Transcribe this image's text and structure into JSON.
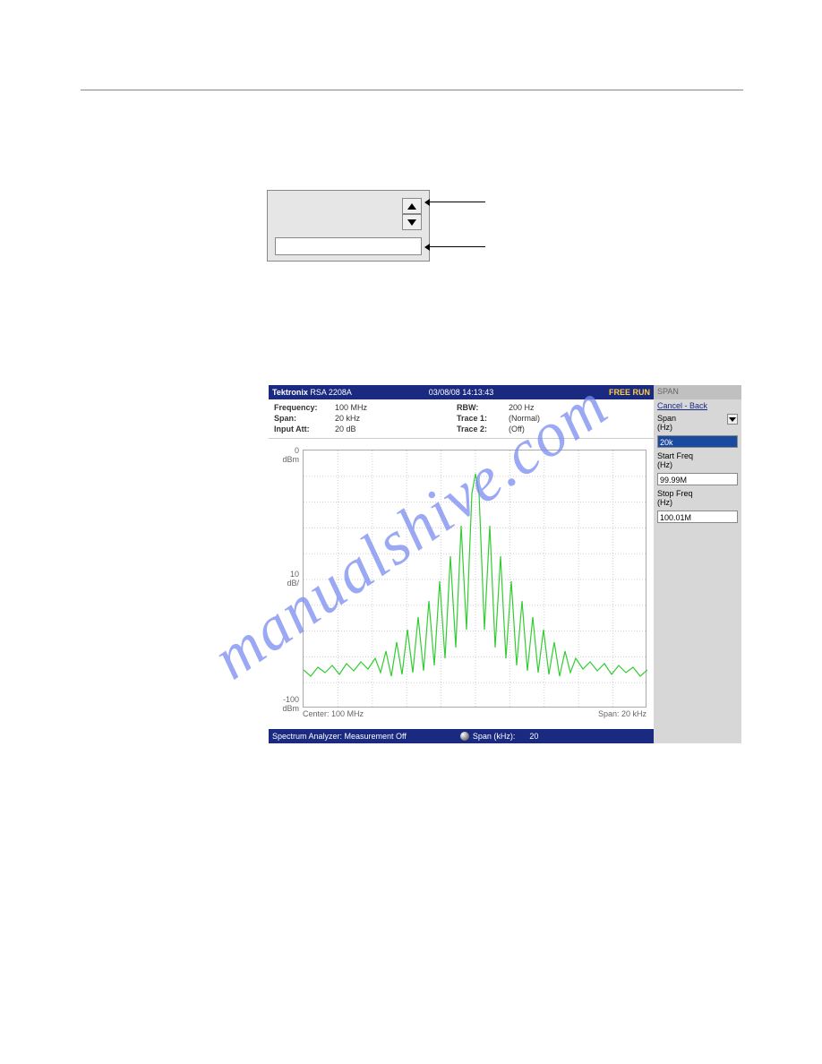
{
  "title_bar": {
    "brand": "Tektronix",
    "model": "RSA 2208A",
    "date": "03/08/08 14:13:43",
    "run": "FREE RUN"
  },
  "info": {
    "freq_label": "Frequency:",
    "freq_val": "100 MHz",
    "span_label": "Span:",
    "span_val": "20 kHz",
    "att_label": "Input Att:",
    "att_val": "20 dB",
    "rbw_label": "RBW:",
    "rbw_val": "200 Hz",
    "t1_label": "Trace 1:",
    "t1_val": "(Normal)",
    "t2_label": "Trace 2:",
    "t2_val": "(Off)"
  },
  "y_axis": {
    "top_val": "0",
    "top_unit": "dBm",
    "mid_val": "10",
    "mid_unit": "dB/",
    "bot_val": "-100",
    "bot_unit": "dBm"
  },
  "x_axis": {
    "center": "Center: 100 MHz",
    "span": "Span: 20 kHz"
  },
  "chart": {
    "type": "line",
    "color": "#33cc33",
    "background": "#ffffff",
    "grid_color": "#d0d0d0",
    "xlim": [
      0,
      384
    ],
    "ylim": [
      0,
      288
    ],
    "h_gridlines": 10,
    "v_gridlines": 10,
    "series": [
      [
        0,
        245
      ],
      [
        8,
        252
      ],
      [
        16,
        242
      ],
      [
        24,
        248
      ],
      [
        32,
        240
      ],
      [
        40,
        250
      ],
      [
        48,
        238
      ],
      [
        56,
        246
      ],
      [
        64,
        236
      ],
      [
        72,
        244
      ],
      [
        80,
        232
      ],
      [
        86,
        248
      ],
      [
        92,
        224
      ],
      [
        98,
        252
      ],
      [
        104,
        214
      ],
      [
        110,
        250
      ],
      [
        116,
        200
      ],
      [
        122,
        248
      ],
      [
        128,
        186
      ],
      [
        134,
        246
      ],
      [
        140,
        168
      ],
      [
        146,
        240
      ],
      [
        152,
        146
      ],
      [
        158,
        232
      ],
      [
        164,
        118
      ],
      [
        170,
        220
      ],
      [
        176,
        84
      ],
      [
        182,
        200
      ],
      [
        188,
        48
      ],
      [
        192,
        26
      ],
      [
        196,
        48
      ],
      [
        202,
        200
      ],
      [
        208,
        84
      ],
      [
        214,
        220
      ],
      [
        220,
        118
      ],
      [
        226,
        232
      ],
      [
        232,
        146
      ],
      [
        238,
        240
      ],
      [
        244,
        168
      ],
      [
        250,
        246
      ],
      [
        256,
        186
      ],
      [
        262,
        248
      ],
      [
        268,
        200
      ],
      [
        274,
        250
      ],
      [
        280,
        214
      ],
      [
        286,
        252
      ],
      [
        292,
        224
      ],
      [
        298,
        248
      ],
      [
        304,
        232
      ],
      [
        312,
        244
      ],
      [
        320,
        236
      ],
      [
        328,
        246
      ],
      [
        336,
        238
      ],
      [
        344,
        250
      ],
      [
        352,
        240
      ],
      [
        360,
        248
      ],
      [
        368,
        242
      ],
      [
        376,
        252
      ],
      [
        384,
        245
      ]
    ]
  },
  "status": {
    "left": "Spectrum Analyzer: Measurement Off",
    "span_label": "Span (kHz):",
    "span_val": "20"
  },
  "side": {
    "title": "SPAN",
    "cancel": "Cancel - Back",
    "span_label": "Span",
    "span_unit": "(Hz)",
    "span_val": "20k",
    "start_label": "Start Freq",
    "start_unit": "(Hz)",
    "start_val": "99.99M",
    "stop_label": "Stop Freq",
    "stop_unit": "(Hz)",
    "stop_val": "100.01M"
  },
  "watermark": "manualshive.com"
}
